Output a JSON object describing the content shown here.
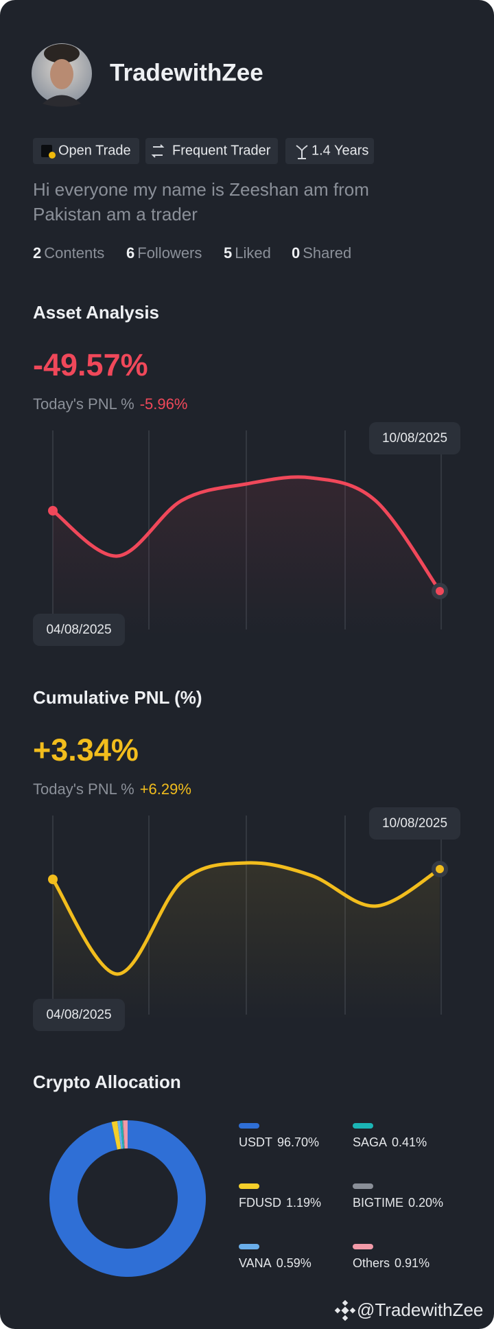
{
  "profile": {
    "name": "TradewithZee",
    "badges": [
      "Open Trade",
      "Frequent Trader",
      "1.4 Years"
    ],
    "bio": "Hi everyone my name is Zeeshan am from Pakistan am a trader",
    "stats": [
      {
        "count": "2",
        "label": "Contents"
      },
      {
        "count": "6",
        "label": "Followers"
      },
      {
        "count": "5",
        "label": "Liked"
      },
      {
        "count": "0",
        "label": "Shared"
      }
    ]
  },
  "chart_data": [
    {
      "type": "line",
      "title": "Asset Analysis",
      "headline": "-49.57%",
      "subtitle": "Today's PNL %",
      "subtitle_value": "-5.96%",
      "categories": [
        "04/08/2025",
        null,
        null,
        null,
        null,
        null,
        "10/08/2025"
      ],
      "series": [
        {
          "color": "#f0485a",
          "values": [
            61,
            39,
            66,
            74,
            77,
            66,
            22
          ]
        }
      ],
      "ylim": [
        0,
        100
      ]
    },
    {
      "type": "line",
      "title": "Cumulative PNL (%)",
      "headline": "+3.34%",
      "subtitle": "Today's PNL %",
      "subtitle_value": "+6.29%",
      "categories": [
        "04/08/2025",
        null,
        null,
        null,
        null,
        null,
        "10/08/2025"
      ],
      "series": [
        {
          "color": "#f2bd1d",
          "values": [
            69,
            23,
            68,
            77,
            71,
            56,
            74
          ]
        }
      ],
      "ylim": [
        0,
        100
      ]
    },
    {
      "type": "pie",
      "title": "Crypto Allocation",
      "categories": [
        "USDT",
        "FDUSD",
        "VANA",
        "SAGA",
        "BIGTIME",
        "Others"
      ],
      "values": [
        96.7,
        1.19,
        0.59,
        0.41,
        0.2,
        0.91
      ],
      "value_labels": [
        "96.70%",
        "1.19%",
        "0.59%",
        "0.41%",
        "0.20%",
        "0.91%"
      ],
      "colors": [
        "#2f6fd6",
        "#f5cf2a",
        "#6aaeea",
        "#1bb5b5",
        "#8a8f98",
        "#f29aa8"
      ]
    }
  ],
  "footer": "@TradewithZee"
}
